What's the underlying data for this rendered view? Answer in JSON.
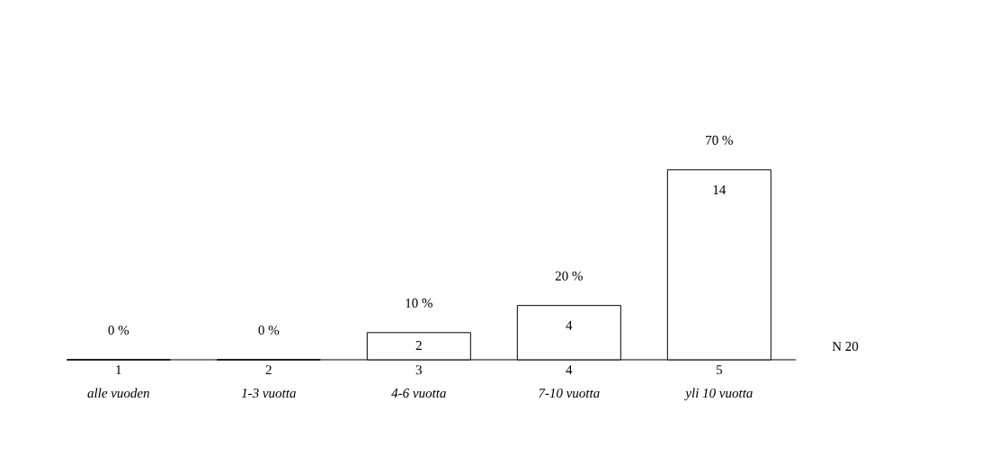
{
  "chart_data": {
    "type": "bar",
    "categories": [
      "1",
      "2",
      "3",
      "4",
      "5"
    ],
    "values": [
      0,
      0,
      2,
      4,
      14
    ],
    "value_labels": [
      null,
      null,
      "2",
      "4",
      "14"
    ],
    "color": "#ffffff",
    "annotations": [
      {
        "text": "0 %",
        "x": "1",
        "y": 0
      },
      {
        "text": "0 %",
        "x": "2",
        "y": 0
      },
      {
        "text": "10 %",
        "x": "3",
        "y": 2
      },
      {
        "text": "20 %",
        "x": "4",
        "y": 4
      },
      {
        "text": "70 %",
        "x": "5",
        "y": 14
      },
      "alle vuoden",
      "1-3 vuotta",
      "4-6 vuotta",
      "7-10 vuotta",
      "yli 10 vuotta",
      "N   20"
    ]
  }
}
